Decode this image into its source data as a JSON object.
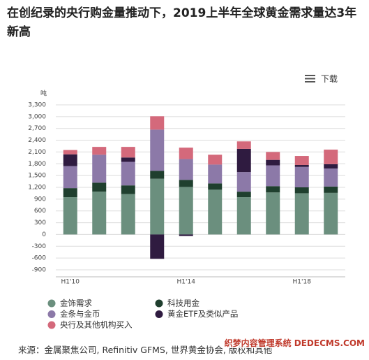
{
  "chart_data": {
    "type": "bar",
    "stacked": true,
    "title": "在创纪录的央行购金量推动下，2019上半年全球黄金需求量达3年新高",
    "ylabel": "吨",
    "download": "下载",
    "source": "来源：金属聚焦公司, Refinitiv GFMS, 世界黄金协会, 版权和其他",
    "watermark": "织梦内容管理系统 DEDECMS.COM",
    "categories": [
      "H1'10",
      null,
      null,
      null,
      "H1'14",
      null,
      null,
      null,
      "H1'18",
      null
    ],
    "series": [
      {
        "name": "金饰需求",
        "color": "#6b8f7e",
        "values": [
          950,
          1090,
          1030,
          1420,
          1210,
          1140,
          950,
          1070,
          1050,
          1060
        ]
      },
      {
        "name": "科技用金",
        "color": "#1f3f2e",
        "values": [
          230,
          230,
          220,
          200,
          180,
          160,
          140,
          160,
          150,
          160
        ]
      },
      {
        "name": "金条与金币",
        "color": "#8c79a8",
        "values": [
          560,
          710,
          600,
          1050,
          530,
          480,
          500,
          530,
          520,
          460
        ]
      },
      {
        "name": "黄金ETF及类似产品",
        "color": "#2f1b40",
        "values": [
          300,
          0,
          110,
          -620,
          -40,
          0,
          590,
          140,
          50,
          110
        ]
      },
      {
        "name": "央行及其他机构买入",
        "color": "#d4697b",
        "values": [
          110,
          200,
          270,
          340,
          290,
          250,
          190,
          200,
          230,
          370
        ]
      }
    ],
    "ylim": [
      -900,
      3300
    ],
    "yticks": [
      {
        "value": 3300,
        "label": "3,300"
      },
      {
        "value": 3000,
        "label": "3,000"
      },
      {
        "value": 2700,
        "label": "2,700"
      },
      {
        "value": 2400,
        "label": "2,400"
      },
      {
        "value": 2100,
        "label": "2,100"
      },
      {
        "value": 1800,
        "label": "1,800"
      },
      {
        "value": 1500,
        "label": "1,500"
      },
      {
        "value": 1200,
        "label": "1,200"
      },
      900,
      600,
      300,
      0,
      -300,
      -600,
      -900
    ],
    "grid": true
  }
}
